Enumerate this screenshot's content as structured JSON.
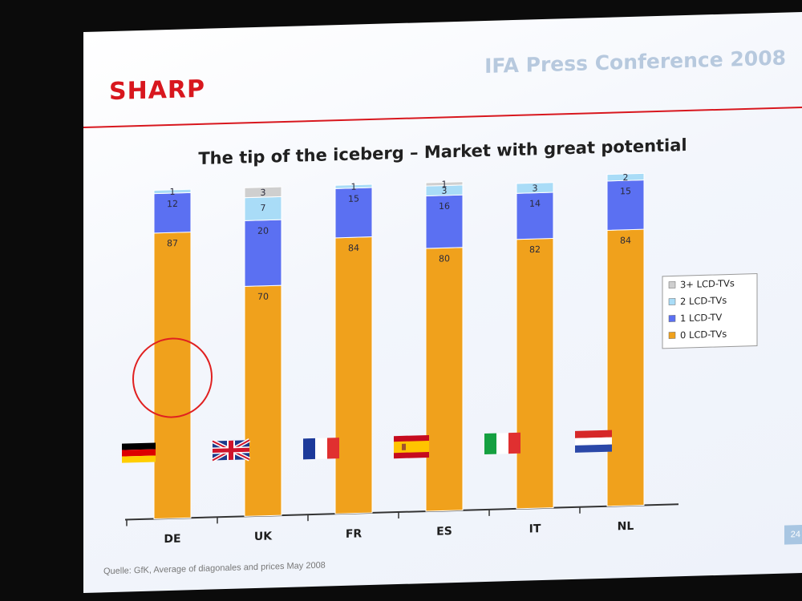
{
  "header": {
    "brand": "SHARP",
    "conference": "IFA Press Conference 2008"
  },
  "footer": {
    "source": "Quelle: GfK, Average of diagonales and prices May 2008",
    "page_number": "24"
  },
  "colors": {
    "0 LCD-TVs": "#f0a11c",
    "1 LCD-TV": "#5b70f2",
    "2 LCD-TVs": "#a9dcf7",
    "3+ LCD-TVs": "#cfcfcf",
    "highlight": "#e02020",
    "header_rule": "#d8171e"
  },
  "chart_data": {
    "type": "bar",
    "stacked": true,
    "title": "The tip of the iceberg – Market with great potential",
    "xlabel": "",
    "ylabel": "",
    "ylim": [
      0,
      100
    ],
    "grid": false,
    "legend_position": "right",
    "categories": [
      "DE",
      "UK",
      "FR",
      "ES",
      "IT",
      "NL"
    ],
    "series": [
      {
        "name": "0 LCD-TVs",
        "values": [
          87,
          70,
          84,
          80,
          82,
          84
        ]
      },
      {
        "name": "1 LCD-TV",
        "values": [
          12,
          20,
          15,
          16,
          14,
          15
        ]
      },
      {
        "name": "2 LCD-TVs",
        "values": [
          1,
          7,
          1,
          3,
          3,
          2
        ]
      },
      {
        "name": "3+ LCD-TVs",
        "values": [
          0,
          3,
          0,
          1,
          0,
          0
        ]
      }
    ],
    "legend": [
      "3+ LCD-TVs",
      "2 LCD-TVs",
      "1 LCD-TV",
      "0 LCD-TVs"
    ],
    "highlight": {
      "category": "DE",
      "series": "0 LCD-TVs",
      "mark": "circle"
    },
    "flags": [
      {
        "category": "DE",
        "flag": "germany-flag"
      },
      {
        "category": "UK",
        "flag": "uk-flag"
      },
      {
        "category": "FR",
        "flag": "france-flag"
      },
      {
        "category": "ES",
        "flag": "spain-flag"
      },
      {
        "category": "IT",
        "flag": "italy-flag"
      },
      {
        "category": "NL",
        "flag": "netherlands-flag"
      }
    ]
  }
}
